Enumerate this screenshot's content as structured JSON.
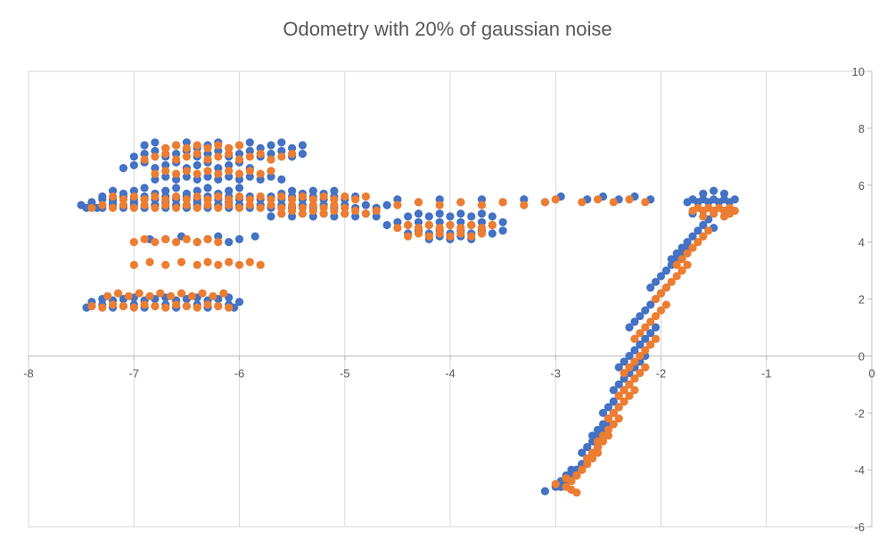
{
  "chart_data": {
    "type": "scatter",
    "title": "Odometry with 20% of gaussian noise",
    "xlim": [
      -8,
      0
    ],
    "ylim": [
      -6,
      10
    ],
    "x_ticks": [
      -8,
      -7,
      -6,
      -5,
      -4,
      -3,
      -2,
      -1,
      0
    ],
    "y_ticks": [
      -6,
      -4,
      -2,
      0,
      2,
      4,
      6,
      8,
      10
    ],
    "x_tick_labels": [
      "-8",
      "-7",
      "-6",
      "-5",
      "-4",
      "-3",
      "-2",
      "-1",
      "0"
    ],
    "y_tick_labels": [
      "-6",
      "-4",
      "-2",
      "0",
      "2",
      "4",
      "6",
      "8",
      "10"
    ],
    "grid": "vertical",
    "legend": "none",
    "series": [
      {
        "color": "#4472C4",
        "x": [
          -7.45,
          -7.4,
          -7.3,
          -7.2,
          -7.1,
          -7.0,
          -6.9,
          -6.8,
          -6.7,
          -6.6,
          -6.5,
          -6.4,
          -6.3,
          -6.2,
          -6.1,
          -6.05,
          -7.4,
          -7.3,
          -7.2,
          -7.1,
          -7.0,
          -6.9,
          -6.8,
          -6.7,
          -6.6,
          -6.5,
          -6.4,
          -6.3,
          -6.2,
          -6.1,
          -6.0,
          -7.5,
          -7.4,
          -7.35,
          -7.3,
          -7.2,
          -7.1,
          -7.0,
          -6.9,
          -6.8,
          -6.7,
          -6.6,
          -6.5,
          -6.4,
          -6.3,
          -6.2,
          -6.1,
          -7.2,
          -7.1,
          -7.0,
          -6.9,
          -6.8,
          -6.7,
          -6.6,
          -6.5,
          -6.4,
          -6.3,
          -6.2,
          -6.1,
          -6.0,
          -7.1,
          -7.0,
          -6.9,
          -6.8,
          -6.7,
          -6.6,
          -6.5,
          -6.4,
          -6.3,
          -6.2,
          -6.1,
          -6.0,
          -5.9,
          -7.45,
          -7.4,
          -7.3,
          -7.2,
          -7.1,
          -7.0,
          -6.9,
          -6.8,
          -6.7,
          -6.6,
          -6.5,
          -6.4,
          -6.3,
          -6.2,
          -6.1,
          -6.0,
          -5.9,
          -5.8,
          -5.7,
          -5.6,
          -5.5,
          -5.4,
          -5.3,
          -5.2,
          -5.1,
          -5.0,
          -4.9,
          -4.8,
          -4.7,
          -4.6,
          -7.3,
          -7.2,
          -7.1,
          -7.0,
          -6.9,
          -6.8,
          -6.7,
          -6.6,
          -6.5,
          -6.4,
          -6.3,
          -6.2,
          -6.1,
          -6.0,
          -5.9,
          -5.8,
          -5.7,
          -5.6,
          -5.5,
          -5.4,
          -5.3,
          -5.2,
          -5.1,
          -5.0,
          -4.9,
          -7.0,
          -6.9,
          -6.8,
          -6.7,
          -6.6,
          -6.5,
          -6.4,
          -6.3,
          -6.2,
          -6.1,
          -6.0,
          -5.9,
          -5.8,
          -5.7,
          -5.6,
          -5.5,
          -5.4,
          -6.9,
          -6.8,
          -6.7,
          -6.6,
          -6.5,
          -6.4,
          -6.3,
          -6.2,
          -6.1,
          -6.0,
          -5.9,
          -5.8,
          -5.7,
          -5.6,
          -5.5,
          -5.4,
          -6.8,
          -6.7,
          -6.6,
          -6.5,
          -6.4,
          -6.3,
          -6.2,
          -6.1,
          -6.0,
          -5.9,
          -5.8,
          -5.7,
          -5.6,
          -6.85,
          -6.7,
          -6.55,
          -6.4,
          -6.3,
          -6.2,
          -6.1,
          -6.0,
          -5.85,
          -5.7,
          -5.6,
          -5.5,
          -5.4,
          -5.3,
          -5.2,
          -5.1,
          -5.0,
          -4.9,
          -4.8,
          -4.7,
          -5.6,
          -5.5,
          -5.4,
          -5.3,
          -5.2,
          -5.1,
          -4.6,
          -4.5,
          -4.4,
          -4.3,
          -4.2,
          -4.1,
          -4.0,
          -3.9,
          -3.8,
          -3.7,
          -3.6,
          -3.5,
          -4.4,
          -4.3,
          -4.2,
          -4.1,
          -4.0,
          -3.9,
          -3.8,
          -3.7,
          -3.6,
          -3.5,
          -4.4,
          -4.3,
          -4.2,
          -4.1,
          -4.0,
          -3.9,
          -3.8,
          -3.7,
          -3.6,
          -4.2,
          -4.1,
          -4.0,
          -3.9,
          -3.8,
          -4.5,
          -4.3,
          -4.1,
          -3.9,
          -3.7,
          -3.5,
          -3.3,
          -3.1,
          -2.95,
          -2.7,
          -2.55,
          -2.4,
          -2.25,
          -2.1,
          -1.75,
          -1.7,
          -1.65,
          -1.6,
          -1.55,
          -1.5,
          -1.45,
          -1.4,
          -1.35,
          -1.3,
          -1.7,
          -1.6,
          -1.5,
          -1.4,
          -1.35,
          -1.6,
          -1.5,
          -1.4,
          -1.9,
          -1.85,
          -1.8,
          -1.75,
          -1.7,
          -1.65,
          -1.6,
          -1.55,
          -1.5,
          -2.1,
          -2.05,
          -2.0,
          -1.95,
          -1.9,
          -1.85,
          -1.8,
          -1.75,
          -2.3,
          -2.25,
          -2.2,
          -2.15,
          -2.1,
          -2.05,
          -2.0,
          -1.95,
          -2.4,
          -2.35,
          -2.3,
          -2.25,
          -2.2,
          -2.15,
          -2.1,
          -2.05,
          -2.45,
          -2.4,
          -2.35,
          -2.3,
          -2.25,
          -2.2,
          -2.15,
          -2.55,
          -2.5,
          -2.45,
          -2.4,
          -2.35,
          -2.3,
          -2.25,
          -2.65,
          -2.6,
          -2.55,
          -2.5,
          -2.45,
          -2.4,
          -2.75,
          -2.7,
          -2.65,
          -2.6,
          -2.55,
          -2.5,
          -2.85,
          -2.8,
          -2.75,
          -2.7,
          -2.65,
          -2.6,
          -2.95,
          -2.9,
          -2.85,
          -2.8,
          -2.75,
          -3.1,
          -3.0,
          -2.95,
          -2.9,
          -2.85
        ],
        "y": [
          1.7,
          1.75,
          1.8,
          1.7,
          1.75,
          1.8,
          1.7,
          1.75,
          1.8,
          1.7,
          1.75,
          1.8,
          1.7,
          1.75,
          1.8,
          1.7,
          1.9,
          2.0,
          1.95,
          2.0,
          2.05,
          1.95,
          2.0,
          2.05,
          1.95,
          2.0,
          2.05,
          1.95,
          2.0,
          2.05,
          1.9,
          5.3,
          5.4,
          5.2,
          5.5,
          5.4,
          5.3,
          5.4,
          5.5,
          5.3,
          5.4,
          5.5,
          5.3,
          5.4,
          5.5,
          5.3,
          5.4,
          5.8,
          5.7,
          5.8,
          5.9,
          5.7,
          5.8,
          5.9,
          5.7,
          5.8,
          5.9,
          5.7,
          5.8,
          5.9,
          6.6,
          6.7,
          6.8,
          6.6,
          6.7,
          6.8,
          6.6,
          6.7,
          6.8,
          6.6,
          6.7,
          6.8,
          6.6,
          5.2,
          5.3,
          5.2,
          5.3,
          5.2,
          5.3,
          5.2,
          5.3,
          5.2,
          5.3,
          5.2,
          5.3,
          5.2,
          5.3,
          5.2,
          5.3,
          5.2,
          5.3,
          5.2,
          5.3,
          5.2,
          5.3,
          5.2,
          5.3,
          5.2,
          5.3,
          5.2,
          5.3,
          5.2,
          5.3,
          5.6,
          5.5,
          5.6,
          5.5,
          5.6,
          5.5,
          5.6,
          5.5,
          5.6,
          5.5,
          5.6,
          5.5,
          5.6,
          5.5,
          5.6,
          5.5,
          5.6,
          5.5,
          5.6,
          5.5,
          5.6,
          5.5,
          5.6,
          5.5,
          5.6,
          7.0,
          7.1,
          7.2,
          7.0,
          7.1,
          7.2,
          7.0,
          7.1,
          7.2,
          7.0,
          7.1,
          7.2,
          7.0,
          7.1,
          7.2,
          7.0,
          7.1,
          7.4,
          7.5,
          7.3,
          7.4,
          7.5,
          7.3,
          7.4,
          7.5,
          7.3,
          7.4,
          7.5,
          7.3,
          7.4,
          7.5,
          7.3,
          7.4,
          6.2,
          6.3,
          6.2,
          6.3,
          6.2,
          6.3,
          6.2,
          6.3,
          6.2,
          6.3,
          6.2,
          6.3,
          6.2,
          4.1,
          4.1,
          4.2,
          4.0,
          4.1,
          4.2,
          4.0,
          4.1,
          4.2,
          4.9,
          5.0,
          4.9,
          5.0,
          4.9,
          5.0,
          4.9,
          5.0,
          4.9,
          5.0,
          4.9,
          5.7,
          5.8,
          5.7,
          5.8,
          5.7,
          5.8,
          4.6,
          4.7,
          4.6,
          4.7,
          4.6,
          4.7,
          4.6,
          4.7,
          4.6,
          4.7,
          4.6,
          4.7,
          4.3,
          4.4,
          4.3,
          4.4,
          4.3,
          4.4,
          4.3,
          4.4,
          4.3,
          4.4,
          4.9,
          5.0,
          4.9,
          5.0,
          4.9,
          5.0,
          4.9,
          5.0,
          4.9,
          4.1,
          4.2,
          4.1,
          4.2,
          4.1,
          5.5,
          5.4,
          5.5,
          5.4,
          5.5,
          5.4,
          5.5,
          5.4,
          5.6,
          5.5,
          5.6,
          5.5,
          5.6,
          5.5,
          5.4,
          5.5,
          5.4,
          5.5,
          5.4,
          5.5,
          5.4,
          5.5,
          5.4,
          5.5,
          5.0,
          5.1,
          5.0,
          5.1,
          5.0,
          5.7,
          5.8,
          5.7,
          3.4,
          3.6,
          3.8,
          4.0,
          4.2,
          4.4,
          4.6,
          4.8,
          4.5,
          2.4,
          2.6,
          2.8,
          3.0,
          3.2,
          3.4,
          3.6,
          3.8,
          1.0,
          1.2,
          1.4,
          1.6,
          1.8,
          2.0,
          2.2,
          2.4,
          -0.4,
          -0.2,
          0.0,
          0.2,
          0.4,
          0.6,
          0.8,
          1.0,
          -1.2,
          -1.0,
          -0.8,
          -0.6,
          -0.4,
          -0.2,
          0.0,
          -2.0,
          -1.8,
          -1.6,
          -1.4,
          -1.2,
          -1.0,
          -0.8,
          -2.8,
          -2.6,
          -2.4,
          -2.2,
          -2.0,
          -1.8,
          -3.4,
          -3.2,
          -3.0,
          -2.8,
          -2.6,
          -2.4,
          -4.2,
          -4.0,
          -3.8,
          -3.6,
          -3.4,
          -3.2,
          -4.6,
          -4.4,
          -4.2,
          -4.0,
          -3.8,
          -4.75,
          -4.6,
          -4.4,
          -4.2,
          -4.0
        ]
      },
      {
        "color": "#ED7D31",
        "x": [
          -7.4,
          -7.3,
          -7.2,
          -7.1,
          -7.0,
          -6.9,
          -6.8,
          -6.7,
          -6.6,
          -6.5,
          -6.4,
          -6.3,
          -6.2,
          -6.1,
          -7.25,
          -7.15,
          -7.05,
          -6.95,
          -6.85,
          -6.75,
          -6.65,
          -6.55,
          -6.45,
          -6.35,
          -6.25,
          -6.15,
          -7.4,
          -7.3,
          -7.2,
          -7.1,
          -7.0,
          -6.9,
          -6.8,
          -6.7,
          -6.6,
          -6.5,
          -6.4,
          -6.3,
          -6.2,
          -6.1,
          -6.0,
          -5.9,
          -5.8,
          -5.7,
          -5.6,
          -5.5,
          -5.4,
          -5.3,
          -5.2,
          -5.1,
          -5.0,
          -7.2,
          -7.1,
          -7.0,
          -6.9,
          -6.8,
          -6.7,
          -6.6,
          -6.5,
          -6.4,
          -6.3,
          -6.2,
          -6.1,
          -6.0,
          -5.9,
          -5.8,
          -5.7,
          -5.6,
          -5.5,
          -5.4,
          -5.3,
          -5.2,
          -5.1,
          -5.0,
          -4.9,
          -4.8,
          -6.9,
          -6.8,
          -6.7,
          -6.6,
          -6.5,
          -6.4,
          -6.3,
          -6.2,
          -6.1,
          -6.0,
          -5.9,
          -5.8,
          -5.7,
          -5.6,
          -5.5,
          -6.8,
          -6.7,
          -6.6,
          -6.5,
          -6.4,
          -6.3,
          -6.2,
          -6.1,
          -6.0,
          -5.9,
          -5.8,
          -5.7,
          -6.7,
          -6.6,
          -6.5,
          -6.4,
          -6.3,
          -6.2,
          -6.1,
          -6.0,
          -7.0,
          -6.85,
          -6.7,
          -6.55,
          -6.4,
          -6.3,
          -6.2,
          -6.1,
          -6.0,
          -5.9,
          -5.8,
          -7.0,
          -6.9,
          -6.8,
          -6.7,
          -6.6,
          -6.5,
          -6.4,
          -6.3,
          -6.2,
          -5.6,
          -5.5,
          -5.4,
          -5.3,
          -5.2,
          -5.1,
          -5.0,
          -4.9,
          -4.8,
          -4.7,
          -4.5,
          -4.4,
          -4.3,
          -4.2,
          -4.1,
          -4.0,
          -3.9,
          -3.8,
          -3.7,
          -3.6,
          -4.4,
          -4.3,
          -4.2,
          -4.1,
          -4.0,
          -3.9,
          -3.8,
          -3.7,
          -4.5,
          -4.3,
          -4.1,
          -3.9,
          -3.7,
          -3.5,
          -3.3,
          -3.1,
          -3.0,
          -2.75,
          -2.6,
          -2.45,
          -2.3,
          -2.15,
          -1.7,
          -1.65,
          -1.6,
          -1.55,
          -1.5,
          -1.45,
          -1.4,
          -1.35,
          -1.3,
          -1.6,
          -1.5,
          -1.4,
          -1.35,
          -1.85,
          -1.8,
          -1.75,
          -1.7,
          -1.65,
          -1.6,
          -1.55,
          -2.05,
          -2.0,
          -1.95,
          -1.9,
          -1.85,
          -1.8,
          -1.75,
          -2.25,
          -2.2,
          -2.15,
          -2.1,
          -2.05,
          -2.0,
          -1.95,
          -2.35,
          -2.3,
          -2.25,
          -2.2,
          -2.15,
          -2.1,
          -2.05,
          -2.4,
          -2.35,
          -2.3,
          -2.25,
          -2.2,
          -2.15,
          -2.5,
          -2.45,
          -2.4,
          -2.35,
          -2.3,
          -2.25,
          -2.6,
          -2.55,
          -2.5,
          -2.45,
          -2.4,
          -2.7,
          -2.65,
          -2.6,
          -2.55,
          -2.5,
          -2.8,
          -2.75,
          -2.7,
          -2.65,
          -2.6,
          -2.9,
          -2.85,
          -2.8,
          -2.75,
          -3.0,
          -2.9,
          -2.85,
          -2.8
        ],
        "y": [
          1.75,
          1.7,
          1.8,
          1.75,
          1.7,
          1.8,
          1.75,
          1.7,
          1.8,
          1.75,
          1.7,
          1.8,
          1.75,
          1.7,
          2.1,
          2.2,
          2.1,
          2.2,
          2.1,
          2.2,
          2.1,
          2.2,
          2.1,
          2.2,
          2.1,
          2.2,
          5.2,
          5.3,
          5.2,
          5.3,
          5.2,
          5.3,
          5.2,
          5.3,
          5.2,
          5.3,
          5.2,
          5.3,
          5.2,
          5.3,
          5.2,
          5.3,
          5.2,
          5.3,
          5.2,
          5.3,
          5.2,
          5.3,
          5.2,
          5.3,
          5.2,
          5.6,
          5.5,
          5.6,
          5.5,
          5.6,
          5.5,
          5.6,
          5.5,
          5.6,
          5.5,
          5.6,
          5.5,
          5.6,
          5.5,
          5.6,
          5.5,
          5.6,
          5.5,
          5.6,
          5.5,
          5.6,
          5.5,
          5.6,
          5.5,
          5.6,
          6.9,
          7.0,
          7.1,
          6.9,
          7.0,
          7.1,
          6.9,
          7.0,
          7.1,
          6.9,
          7.0,
          7.1,
          6.9,
          7.0,
          7.1,
          6.4,
          6.5,
          6.4,
          6.5,
          6.4,
          6.5,
          6.4,
          6.5,
          6.4,
          6.5,
          6.4,
          6.5,
          7.3,
          7.4,
          7.3,
          7.4,
          7.3,
          7.4,
          7.3,
          7.4,
          3.2,
          3.3,
          3.2,
          3.3,
          3.2,
          3.3,
          3.2,
          3.3,
          3.2,
          3.3,
          3.2,
          4.0,
          4.1,
          4.0,
          4.1,
          4.0,
          4.1,
          4.0,
          4.1,
          4.0,
          5.0,
          5.1,
          5.0,
          5.1,
          5.0,
          5.1,
          5.0,
          5.1,
          5.0,
          5.1,
          4.5,
          4.6,
          4.5,
          4.6,
          4.5,
          4.6,
          4.5,
          4.6,
          4.5,
          4.6,
          4.2,
          4.3,
          4.2,
          4.3,
          4.2,
          4.3,
          4.2,
          4.3,
          5.3,
          5.4,
          5.3,
          5.4,
          5.3,
          5.4,
          5.3,
          5.4,
          5.5,
          5.4,
          5.5,
          5.4,
          5.5,
          5.4,
          5.1,
          5.2,
          5.1,
          5.2,
          5.1,
          5.2,
          5.1,
          5.2,
          5.1,
          4.9,
          5.0,
          4.9,
          5.0,
          3.2,
          3.4,
          3.6,
          3.8,
          4.0,
          4.2,
          4.4,
          2.0,
          2.2,
          2.4,
          2.6,
          2.8,
          3.0,
          3.2,
          0.6,
          0.8,
          1.0,
          1.2,
          1.4,
          1.6,
          1.8,
          -0.6,
          -0.4,
          -0.2,
          0.0,
          0.2,
          0.4,
          0.6,
          -1.4,
          -1.2,
          -1.0,
          -0.8,
          -0.6,
          -0.4,
          -2.2,
          -2.0,
          -1.8,
          -1.6,
          -1.4,
          -1.2,
          -3.0,
          -2.8,
          -2.6,
          -2.4,
          -2.2,
          -3.6,
          -3.4,
          -3.2,
          -3.0,
          -2.8,
          -4.2,
          -4.0,
          -3.8,
          -3.6,
          -3.4,
          -4.6,
          -4.4,
          -4.2,
          -4.0,
          -4.5,
          -4.3,
          -4.7,
          -4.8
        ]
      }
    ]
  }
}
